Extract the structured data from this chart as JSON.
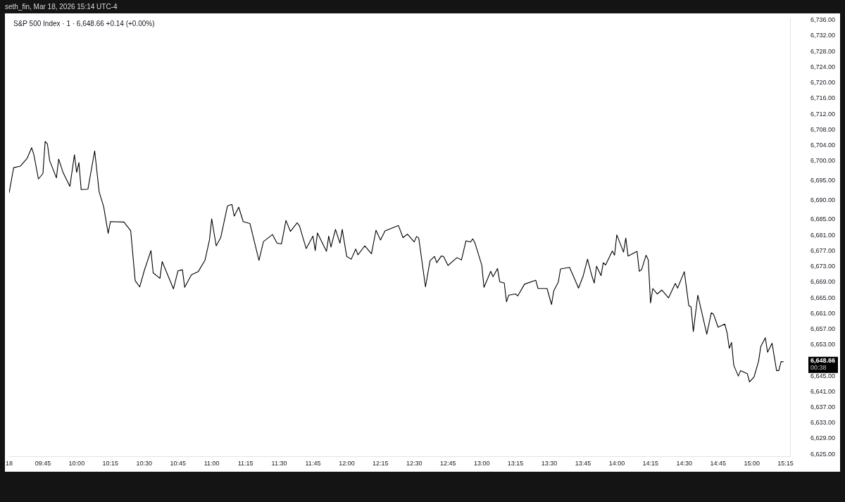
{
  "chart_data": {
    "type": "line",
    "title": "S&P 500 Index · 1 · 6,648.66 +0.14 (+0.00%)",
    "annotations": [
      "seth_fin, Mar 18, 2026 15:14 UTC-4",
      "6,648.66\n00:38"
    ],
    "x": [
      "2026-03-18T09:30",
      "2026-03-18T09:32",
      "2026-03-18T09:35",
      "2026-03-18T09:38",
      "2026-03-18T09:40",
      "2026-03-18T09:41",
      "2026-03-18T09:43",
      "2026-03-18T09:45",
      "2026-03-18T09:46",
      "2026-03-18T09:47",
      "2026-03-18T09:48",
      "2026-03-18T09:51",
      "2026-03-18T09:52",
      "2026-03-18T09:54",
      "2026-03-18T09:57",
      "2026-03-18T09:59",
      "2026-03-18T10:00",
      "2026-03-18T10:01",
      "2026-03-18T10:02",
      "2026-03-18T10:05",
      "2026-03-18T10:08",
      "2026-03-18T10:10",
      "2026-03-18T10:12",
      "2026-03-18T10:14",
      "2026-03-18T10:15",
      "2026-03-18T10:21",
      "2026-03-18T10:24",
      "2026-03-18T10:26",
      "2026-03-18T10:28",
      "2026-03-18T10:30",
      "2026-03-18T10:33",
      "2026-03-18T10:34",
      "2026-03-18T10:37",
      "2026-03-18T10:38",
      "2026-03-18T10:43",
      "2026-03-18T10:45",
      "2026-03-18T10:47",
      "2026-03-18T10:48",
      "2026-03-18T10:51",
      "2026-03-18T10:54",
      "2026-03-18T10:57",
      "2026-03-18T10:59",
      "2026-03-18T11:00",
      "2026-03-18T11:02",
      "2026-03-18T11:04",
      "2026-03-18T11:07",
      "2026-03-18T11:09",
      "2026-03-18T11:10",
      "2026-03-18T11:12",
      "2026-03-18T11:14",
      "2026-03-18T11:17",
      "2026-03-18T11:21",
      "2026-03-18T11:23",
      "2026-03-18T11:27",
      "2026-03-18T11:29",
      "2026-03-18T11:31",
      "2026-03-18T11:33",
      "2026-03-18T11:35",
      "2026-03-18T11:38",
      "2026-03-18T11:39",
      "2026-03-18T11:42",
      "2026-03-18T11:45",
      "2026-03-18T11:46",
      "2026-03-18T11:47",
      "2026-03-18T11:51",
      "2026-03-18T11:52",
      "2026-03-18T11:53",
      "2026-03-18T11:55",
      "2026-03-18T11:57",
      "2026-03-18T11:58",
      "2026-03-18T12:00",
      "2026-03-18T12:02",
      "2026-03-18T12:04",
      "2026-03-18T12:05",
      "2026-03-18T12:08",
      "2026-03-18T12:11",
      "2026-03-18T12:13",
      "2026-03-18T12:15",
      "2026-03-18T12:17",
      "2026-03-18T12:23",
      "2026-03-18T12:25",
      "2026-03-18T12:27",
      "2026-03-18T12:30",
      "2026-03-18T12:31",
      "2026-03-18T12:32",
      "2026-03-18T12:35",
      "2026-03-18T12:37",
      "2026-03-18T12:39",
      "2026-03-18T12:40",
      "2026-03-18T12:42",
      "2026-03-18T12:43",
      "2026-03-18T12:45",
      "2026-03-18T12:49",
      "2026-03-18T12:51",
      "2026-03-18T12:53",
      "2026-03-18T12:55",
      "2026-03-18T12:56",
      "2026-03-18T12:57",
      "2026-03-18T13:00",
      "2026-03-18T13:01",
      "2026-03-18T13:04",
      "2026-03-18T13:05",
      "2026-03-18T13:07",
      "2026-03-18T13:08",
      "2026-03-18T13:10",
      "2026-03-18T13:11",
      "2026-03-18T13:12",
      "2026-03-18T13:15",
      "2026-03-18T13:16",
      "2026-03-18T13:19",
      "2026-03-18T13:24",
      "2026-03-18T13:25",
      "2026-03-18T13:29",
      "2026-03-18T13:31",
      "2026-03-18T13:32",
      "2026-03-18T13:34",
      "2026-03-18T13:35",
      "2026-03-18T13:39",
      "2026-03-18T13:41",
      "2026-03-18T13:43",
      "2026-03-18T13:45",
      "2026-03-18T13:47",
      "2026-03-18T13:49",
      "2026-03-18T13:50",
      "2026-03-18T13:51",
      "2026-03-18T13:53",
      "2026-03-18T13:54",
      "2026-03-18T13:55",
      "2026-03-18T13:58",
      "2026-03-18T13:59",
      "2026-03-18T14:00",
      "2026-03-18T14:03",
      "2026-03-18T14:04",
      "2026-03-18T14:05",
      "2026-03-18T14:09",
      "2026-03-18T14:10",
      "2026-03-18T14:11",
      "2026-03-18T14:13",
      "2026-03-18T14:14",
      "2026-03-18T14:15",
      "2026-03-18T14:16",
      "2026-03-18T14:18",
      "2026-03-18T14:20",
      "2026-03-18T14:23",
      "2026-03-18T14:26",
      "2026-03-18T14:27",
      "2026-03-18T14:30",
      "2026-03-18T14:32",
      "2026-03-18T14:33",
      "2026-03-18T14:34",
      "2026-03-18T14:36",
      "2026-03-18T14:40",
      "2026-03-18T14:42",
      "2026-03-18T14:43",
      "2026-03-18T14:45",
      "2026-03-18T14:48",
      "2026-03-18T14:49",
      "2026-03-18T14:50",
      "2026-03-18T14:51",
      "2026-03-18T14:52",
      "2026-03-18T14:54",
      "2026-03-18T14:55",
      "2026-03-18T14:58",
      "2026-03-18T14:59",
      "2026-03-18T15:01",
      "2026-03-18T15:03",
      "2026-03-18T15:04",
      "2026-03-18T15:06",
      "2026-03-18T15:07",
      "2026-03-18T15:09",
      "2026-03-18T15:11",
      "2026-03-18T15:12",
      "2026-03-18T15:13",
      "2026-03-18T15:14"
    ],
    "values": [
      6691.9,
      6698.3,
      6698.7,
      6700.7,
      6703.4,
      6701.6,
      6695.4,
      6696.8,
      6705.0,
      6704.4,
      6700.1,
      6695.7,
      6700.5,
      6697.0,
      6693.5,
      6701.6,
      6697.1,
      6699.6,
      6692.7,
      6692.8,
      6702.6,
      6692.1,
      6688.3,
      6681.5,
      6684.5,
      6684.4,
      6682.2,
      6669.4,
      6667.8,
      6671.9,
      6677.1,
      6671.4,
      6670.0,
      6674.3,
      6667.3,
      6671.9,
      6672.2,
      6667.7,
      6670.9,
      6671.7,
      6674.6,
      6679.8,
      6685.2,
      6678.3,
      6680.4,
      6688.5,
      6688.9,
      6685.9,
      6688.2,
      6684.5,
      6684.0,
      6674.6,
      6679.4,
      6681.2,
      6679.0,
      6678.8,
      6684.8,
      6682.0,
      6684.2,
      6683.4,
      6677.6,
      6680.8,
      6677.1,
      6681.6,
      6676.9,
      6680.8,
      6678.0,
      6682.5,
      6679.0,
      6682.5,
      6675.6,
      6674.9,
      6677.5,
      6676.0,
      6678.3,
      6676.3,
      6682.3,
      6679.8,
      6682.1,
      6683.5,
      6680.4,
      6681.3,
      6679.3,
      6680.7,
      6680.3,
      6667.8,
      6674.5,
      6675.6,
      6674.0,
      6675.7,
      6675.6,
      6673.3,
      6675.3,
      6674.7,
      6679.6,
      6679.3,
      6680.1,
      6679.0,
      6673.4,
      6667.7,
      6671.8,
      6670.4,
      6672.5,
      6669.1,
      6668.8,
      6664.0,
      6665.7,
      6666.0,
      6665.5,
      6668.5,
      6669.5,
      6667.4,
      6667.4,
      6663.3,
      6666.8,
      6669.0,
      6672.4,
      6672.8,
      6670.2,
      6667.5,
      6670.5,
      6674.9,
      6670.5,
      6668.8,
      6673.1,
      6670.7,
      6674.0,
      6673.4,
      6677.0,
      6675.9,
      6681.1,
      6676.7,
      6680.3,
      6675.7,
      6676.9,
      6671.8,
      6672.2,
      6675.9,
      6674.7,
      6663.7,
      6667.4,
      6666.0,
      6667.0,
      6665.0,
      6668.7,
      6667.5,
      6671.7,
      6663.0,
      6662.7,
      6656.4,
      6665.7,
      6655.7,
      6661.2,
      6660.8,
      6657.5,
      6658.3,
      6656.1,
      6652.1,
      6653.6,
      6647.7,
      6645.0,
      6646.4,
      6645.6,
      6643.5,
      6644.8,
      6648.8,
      6652.6,
      6654.8,
      6651.1,
      6653.4,
      6646.4,
      6646.4,
      6648.7,
      6648.66
    ],
    "color": "#000000",
    "marker": "none",
    "grid": false,
    "legend": false,
    "xlim": [
      "2026-03-18T09:30",
      "2026-03-18T15:17"
    ],
    "xticks": [
      {
        "value": "2026-03-18T09:30",
        "label": "18"
      },
      {
        "value": "2026-03-18T09:45",
        "label": "09:45"
      },
      {
        "value": "2026-03-18T10:00",
        "label": "10:00"
      },
      {
        "value": "2026-03-18T10:15",
        "label": "10:15"
      },
      {
        "value": "2026-03-18T10:30",
        "label": "10:30"
      },
      {
        "value": "2026-03-18T10:45",
        "label": "10:45"
      },
      {
        "value": "2026-03-18T11:00",
        "label": "11:00"
      },
      {
        "value": "2026-03-18T11:15",
        "label": "11:15"
      },
      {
        "value": "2026-03-18T11:30",
        "label": "11:30"
      },
      {
        "value": "2026-03-18T11:45",
        "label": "11:45"
      },
      {
        "value": "2026-03-18T12:00",
        "label": "12:00"
      },
      {
        "value": "2026-03-18T12:15",
        "label": "12:15"
      },
      {
        "value": "2026-03-18T12:30",
        "label": "12:30"
      },
      {
        "value": "2026-03-18T12:45",
        "label": "12:45"
      },
      {
        "value": "2026-03-18T13:00",
        "label": "13:00"
      },
      {
        "value": "2026-03-18T13:15",
        "label": "13:15"
      },
      {
        "value": "2026-03-18T13:30",
        "label": "13:30"
      },
      {
        "value": "2026-03-18T13:45",
        "label": "13:45"
      },
      {
        "value": "2026-03-18T14:00",
        "label": "14:00"
      },
      {
        "value": "2026-03-18T14:15",
        "label": "14:15"
      },
      {
        "value": "2026-03-18T14:30",
        "label": "14:30"
      },
      {
        "value": "2026-03-18T14:45",
        "label": "14:45"
      },
      {
        "value": "2026-03-18T15:00",
        "label": "15:00"
      },
      {
        "value": "2026-03-18T15:15",
        "label": "15:15"
      }
    ],
    "ylim": [
      6624.5,
      6736.5
    ],
    "yticks": [
      {
        "value": 6625,
        "label": "6,625.00"
      },
      {
        "value": 6629,
        "label": "6,629.00"
      },
      {
        "value": 6633,
        "label": "6,633.00"
      },
      {
        "value": 6637,
        "label": "6,637.00"
      },
      {
        "value": 6641,
        "label": "6,641.00"
      },
      {
        "value": 6645,
        "label": "6,645.00"
      },
      {
        "value": 6653,
        "label": "6,653.00"
      },
      {
        "value": 6657,
        "label": "6,657.00"
      },
      {
        "value": 6661,
        "label": "6,661.00"
      },
      {
        "value": 6665,
        "label": "6,665.00"
      },
      {
        "value": 6669,
        "label": "6,669.00"
      },
      {
        "value": 6673,
        "label": "6,673.00"
      },
      {
        "value": 6677,
        "label": "6,677.00"
      },
      {
        "value": 6681,
        "label": "6,681.00"
      },
      {
        "value": 6685,
        "label": "6,685.00"
      },
      {
        "value": 6690,
        "label": "6,690.00"
      },
      {
        "value": 6695,
        "label": "6,695.00"
      },
      {
        "value": 6700,
        "label": "6,700.00"
      },
      {
        "value": 6704,
        "label": "6,704.00"
      },
      {
        "value": 6708,
        "label": "6,708.00"
      },
      {
        "value": 6712,
        "label": "6,712.00"
      },
      {
        "value": 6716,
        "label": "6,716.00"
      },
      {
        "value": 6720,
        "label": "6,720.00"
      },
      {
        "value": 6724,
        "label": "6,724.00"
      },
      {
        "value": 6728,
        "label": "6,728.00"
      },
      {
        "value": 6732,
        "label": "6,732.00"
      },
      {
        "value": 6736,
        "label": "6,736.00"
      }
    ]
  }
}
